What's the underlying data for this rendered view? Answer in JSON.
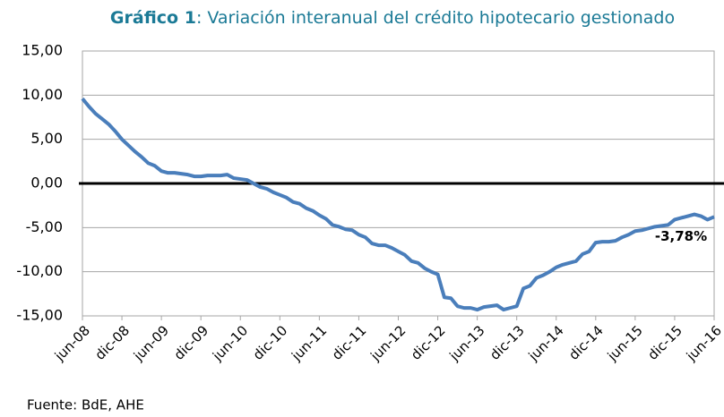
{
  "chart_data": {
    "type": "line",
    "title_prefix": "Gráfico 1",
    "title": ": Variación interanual del crédito hipotecario gestionado",
    "source": "Fuente: BdE, AHE",
    "annotation": "-3,78%",
    "categories": [
      "jun-08",
      null,
      null,
      null,
      null,
      null,
      "dic-08",
      null,
      null,
      null,
      null,
      null,
      "jun-09",
      null,
      null,
      null,
      null,
      null,
      "dic-09",
      null,
      null,
      null,
      null,
      null,
      "jun-10",
      null,
      null,
      null,
      null,
      null,
      "dic-10",
      null,
      null,
      null,
      null,
      null,
      "jun-11",
      null,
      null,
      null,
      null,
      null,
      "dic-11",
      null,
      null,
      null,
      null,
      null,
      "jun-12",
      null,
      null,
      null,
      null,
      null,
      "dic-12",
      null,
      null,
      null,
      null,
      null,
      "jun-13",
      null,
      null,
      null,
      null,
      null,
      "dic-13",
      null,
      null,
      null,
      null,
      null,
      "jun-14",
      null,
      null,
      null,
      null,
      null,
      "dic-14",
      null,
      null,
      null,
      null,
      null,
      "jun-15",
      null,
      null,
      null,
      null,
      null,
      "dic-15",
      null,
      null,
      null,
      null,
      null,
      "jun-16"
    ],
    "series": [
      {
        "name": "Crédito hipotecario",
        "color": "#4a7ebb",
        "values": [
          9.6,
          8.7,
          7.9,
          7.3,
          6.7,
          5.9,
          5.0,
          4.3,
          3.6,
          3.0,
          2.3,
          2.0,
          1.4,
          1.2,
          1.2,
          1.1,
          1.0,
          0.8,
          0.8,
          0.9,
          0.9,
          0.9,
          1.0,
          0.6,
          0.5,
          0.4,
          0.0,
          -0.4,
          -0.6,
          -1.0,
          -1.3,
          -1.6,
          -2.1,
          -2.3,
          -2.8,
          -3.1,
          -3.6,
          -4.0,
          -4.7,
          -4.9,
          -5.2,
          -5.3,
          -5.8,
          -6.1,
          -6.8,
          -7.0,
          -7.0,
          -7.3,
          -7.7,
          -8.1,
          -8.8,
          -9.0,
          -9.6,
          -10.0,
          -10.3,
          -12.9,
          -13.0,
          -13.9,
          -14.1,
          -14.1,
          -14.3,
          -14.0,
          -13.9,
          -13.8,
          -14.3,
          -14.1,
          -13.9,
          -11.9,
          -11.6,
          -10.7,
          -10.4,
          -10.0,
          -9.5,
          -9.2,
          -9.0,
          -8.8,
          -8.0,
          -7.7,
          -6.7,
          -6.6,
          -6.6,
          -6.5,
          -6.1,
          -5.8,
          -5.4,
          -5.3,
          -5.1,
          -4.9,
          -4.8,
          -4.7,
          -4.1,
          -3.9,
          -3.7,
          -3.5,
          -3.7,
          -4.1,
          -3.78
        ]
      }
    ],
    "ylim": [
      -15,
      15
    ],
    "yticks": [
      {
        "value": -15,
        "label": "-15,00"
      },
      {
        "value": -10,
        "label": "-10,00"
      },
      {
        "value": -5,
        "label": "-5,00"
      },
      {
        "value": 0,
        "label": "0,00"
      },
      {
        "value": 5,
        "label": "5,00"
      },
      {
        "value": 10,
        "label": "10,00"
      },
      {
        "value": 15,
        "label": "15,00"
      }
    ],
    "grid": true
  }
}
